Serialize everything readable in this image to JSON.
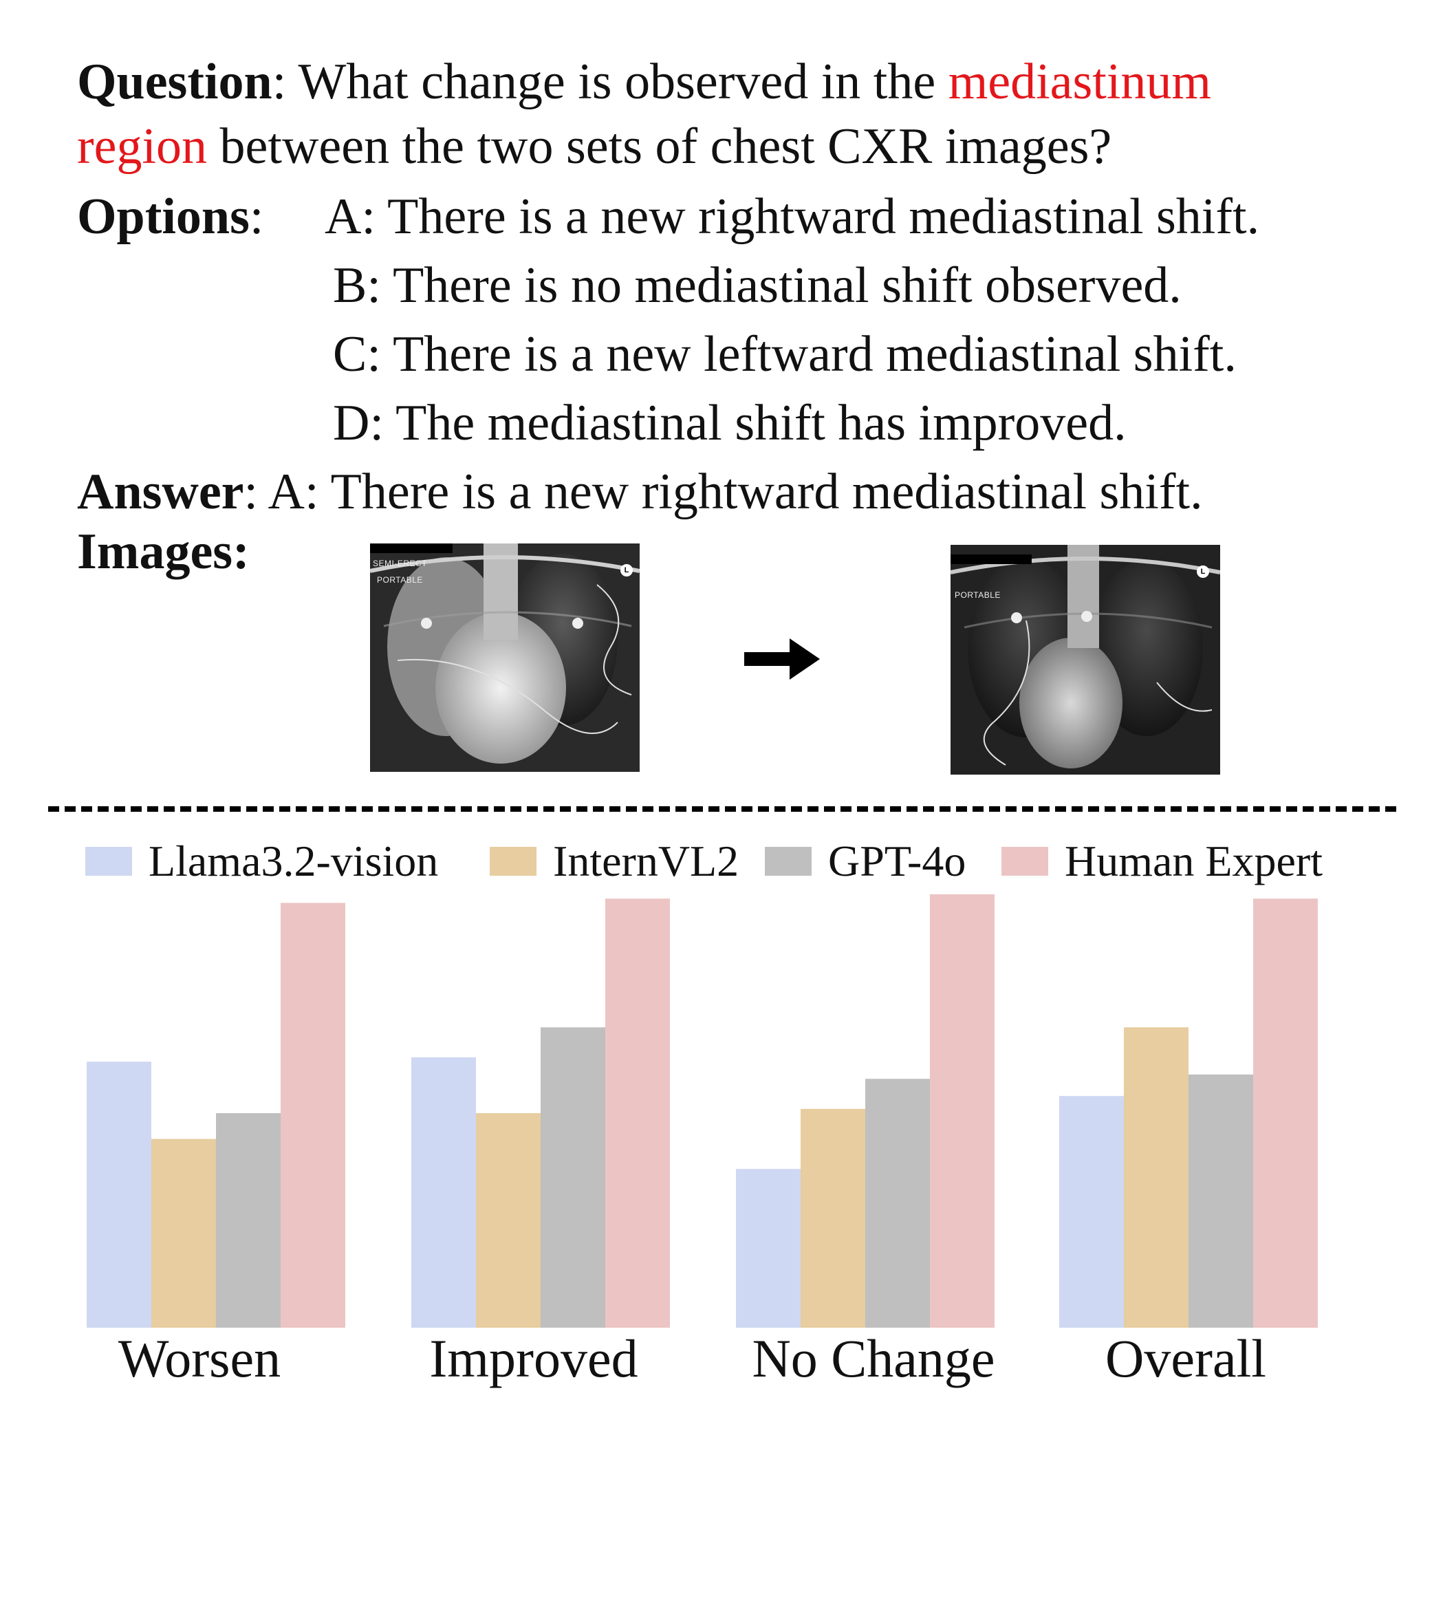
{
  "question": {
    "label": "Question",
    "text_before": ": What change is observed in the ",
    "highlight_1": "mediastinum",
    "highlight_2": "region",
    "text_after": " between the two sets of chest CXR images?"
  },
  "options": {
    "label": "Options",
    "sep": ":",
    "items": [
      "A: There is a new rightward mediastinal shift.",
      "B: There is no mediastinal shift observed.",
      "C: There is a new leftward mediastinal shift.",
      "D: The mediastinal shift has improved."
    ]
  },
  "answer": {
    "label": "Answer",
    "text": ": A: There is a new rightward mediastinal shift."
  },
  "images": {
    "label": "Images:",
    "left_tags": [
      "SEMI-ERECT",
      "PORTABLE"
    ],
    "right_tags": [
      "PORTABLE"
    ],
    "marker": "L"
  },
  "chart_data": {
    "type": "bar",
    "categories": [
      "Worsen",
      "Improved",
      "No Change",
      "Overall"
    ],
    "series": [
      {
        "name": "Llama3.2-vision",
        "color": "#cfd8f2",
        "values": [
          0.62,
          0.63,
          0.37,
          0.54
        ]
      },
      {
        "name": "InternVL2",
        "color": "#e7cd9f",
        "values": [
          0.44,
          0.5,
          0.51,
          0.7
        ]
      },
      {
        "name": "GPT-4o",
        "color": "#bfbfbf",
        "values": [
          0.5,
          0.7,
          0.58,
          0.59
        ]
      },
      {
        "name": "Human Expert",
        "color": "#ecc4c4",
        "values": [
          0.99,
          1.0,
          1.01,
          1.0
        ]
      }
    ],
    "ylim": [
      0,
      1.01
    ],
    "grid": false,
    "legend": "top"
  }
}
